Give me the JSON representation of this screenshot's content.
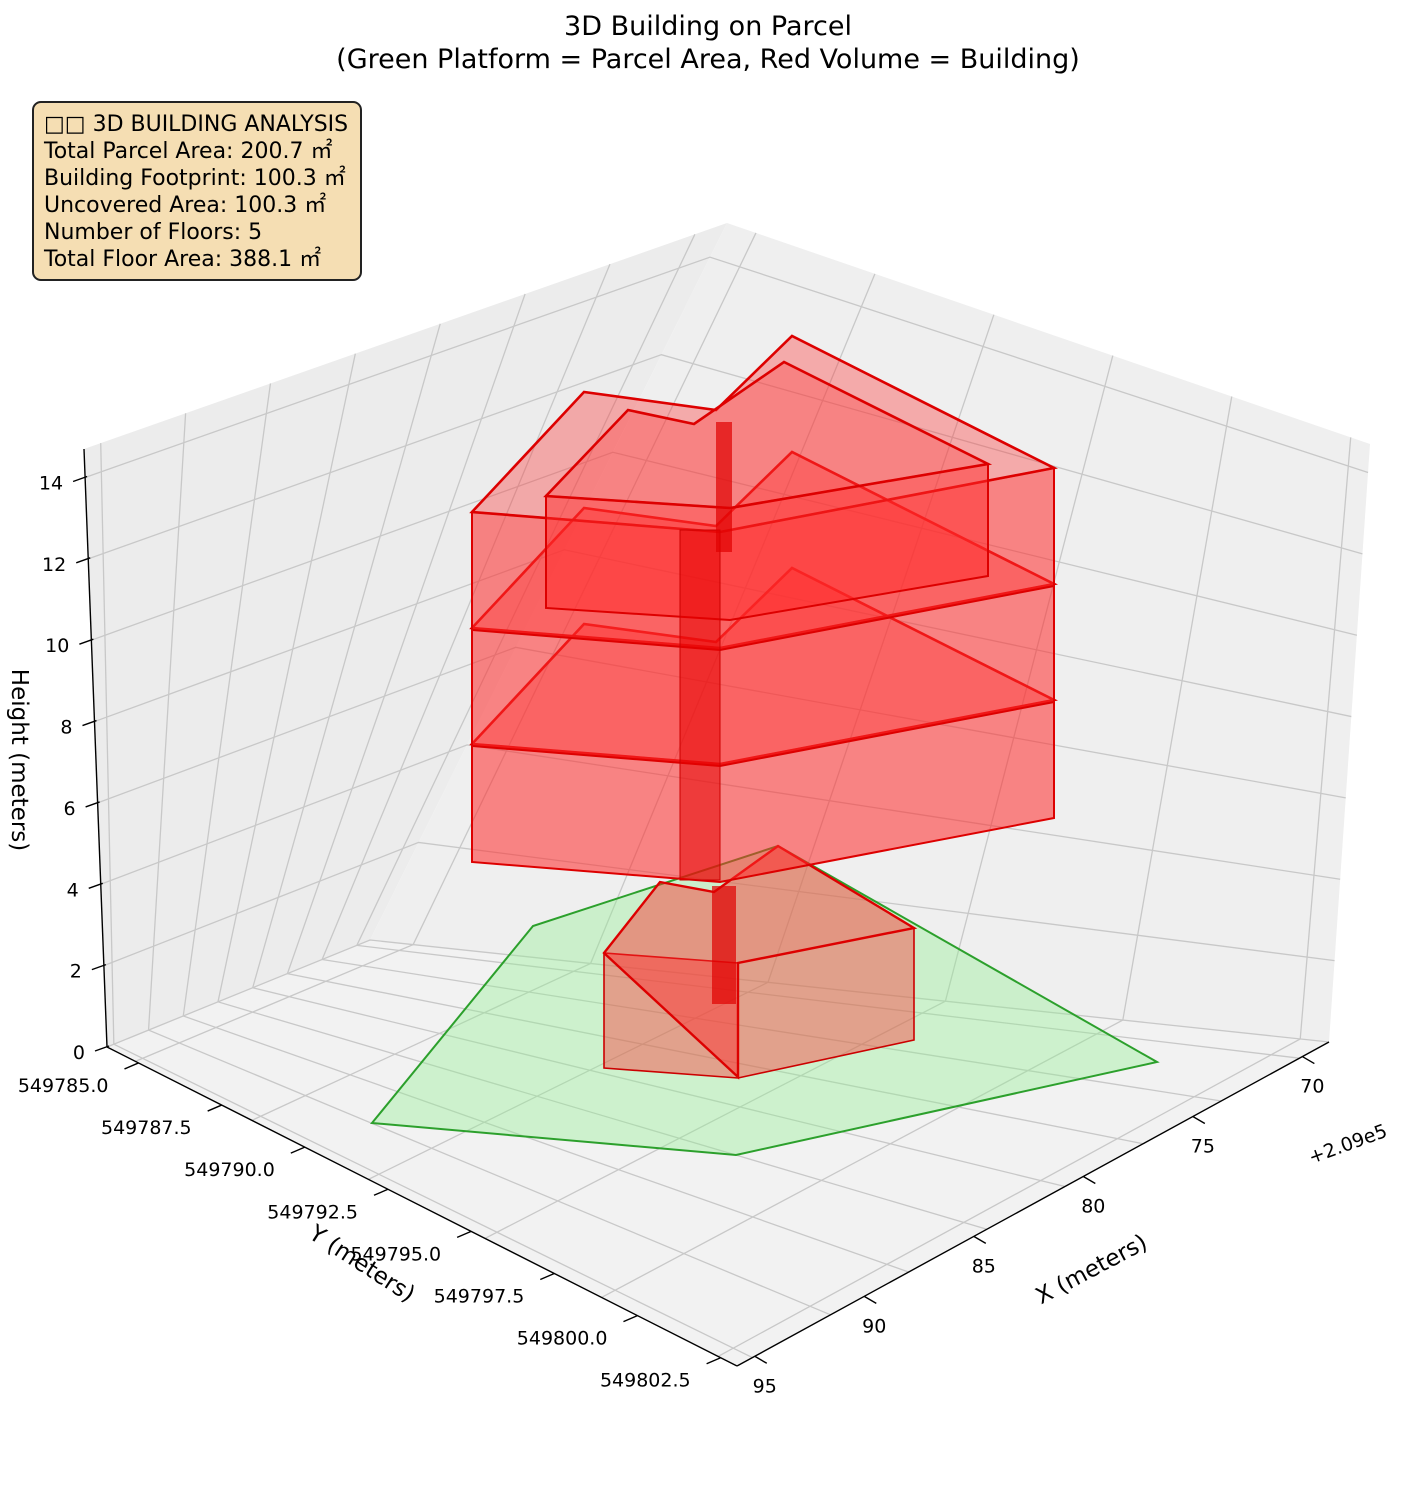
{
  "title": {
    "line1": "3D Building on Parcel",
    "line2": "(Green Platform = Parcel Area, Red Volume = Building)"
  },
  "info_box": {
    "heading": "□□ 3D BUILDING ANALYSIS",
    "lines": [
      "Total Parcel Area: 200.7 ㎡",
      "Building Footprint: 100.3 ㎡",
      "Uncovered Area: 100.3 ㎡",
      "Number of Floors: 5",
      "Total Floor Area: 388.1 ㎡"
    ],
    "background": "#f5deb3"
  },
  "chart_data": {
    "type": "3d-polygon",
    "x_axis": {
      "label": "X (meters)",
      "offset_label": "+2.09e5",
      "tick_labels": [
        "70",
        "75",
        "80",
        "85",
        "90",
        "95"
      ]
    },
    "y_axis": {
      "label": "Y (meters)",
      "tick_labels": [
        "549785.0",
        "549787.5",
        "549790.0",
        "549792.5",
        "549795.0",
        "549797.5",
        "549800.0",
        "549802.5"
      ]
    },
    "z_axis": {
      "label": "Height (meters)",
      "tick_labels": [
        "0",
        "2",
        "4",
        "6",
        "8",
        "10",
        "12",
        "14"
      ],
      "zlim": [
        0,
        15
      ]
    },
    "grid": true,
    "parcel": {
      "name": "Parcel Area",
      "color": "#2ca02c",
      "fill": "#90ee90"
    },
    "building": {
      "name": "Building",
      "color": "#ff0000",
      "floors": 5
    }
  }
}
